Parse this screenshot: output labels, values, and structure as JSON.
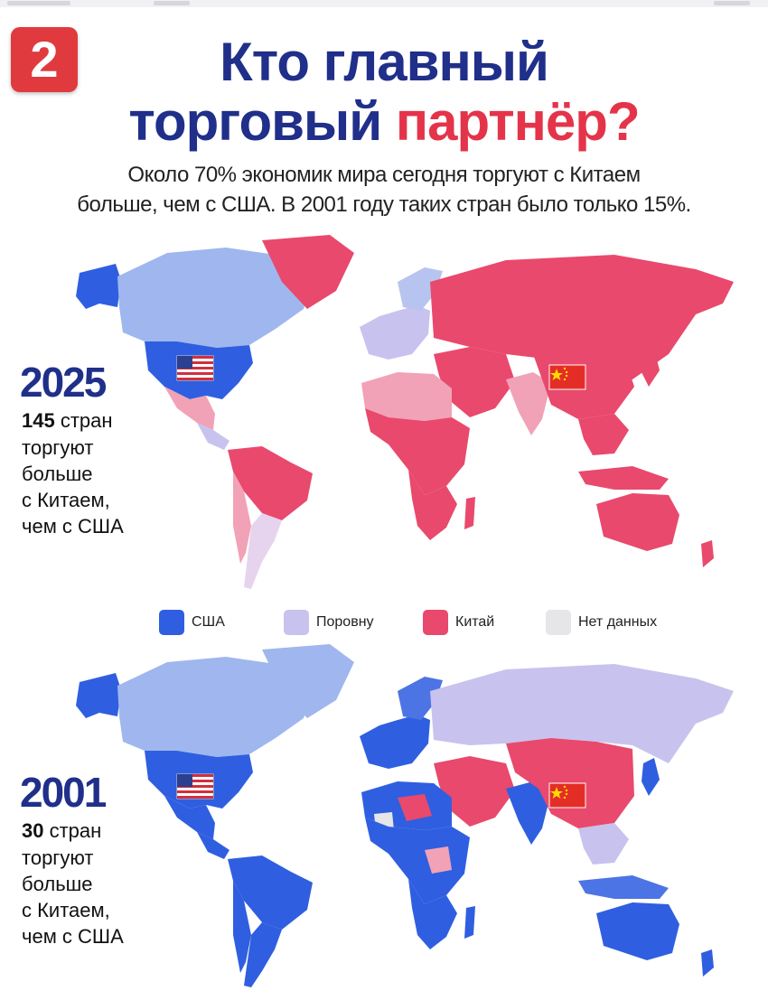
{
  "badge": "2",
  "title": {
    "line1": "Кто главный",
    "line2_prefix": "торговый ",
    "line2_accent": "партнёр?"
  },
  "subtitle": {
    "line1": "Около 70% экономик мира сегодня торгуют с Китаем",
    "line2": "больше, чем с США. В 2001 году таких стран было только 15%."
  },
  "maps": [
    {
      "year": "2025",
      "count_bold": "145",
      "count_rest": " стран",
      "lines": [
        "торгуют",
        "больше",
        "с Китаем,",
        "чем с США"
      ]
    },
    {
      "year": "2001",
      "count_bold": "30",
      "count_rest": " стран",
      "lines": [
        "торгуют",
        "больше",
        "с Китаем,",
        "чем с США"
      ]
    }
  ],
  "legend": [
    {
      "label": "США",
      "color": "#2f5fe0"
    },
    {
      "label": "Поровну",
      "color": "#c8c2ee"
    },
    {
      "label": "Китай",
      "color": "#e9496c"
    },
    {
      "label": "Нет данных",
      "color": "#e6e6e9"
    }
  ],
  "colors": {
    "usa": "#2f5fe0",
    "usa_light": "#9fb7ee",
    "equal": "#c8c2ee",
    "china": "#e9496c",
    "china_light": "#f2a2b6",
    "nodata": "#e6e6e9",
    "title_blue": "#1f2f8a",
    "accent_red": "#e4344a"
  },
  "icons": [
    "us-flag-icon",
    "china-flag-icon"
  ]
}
